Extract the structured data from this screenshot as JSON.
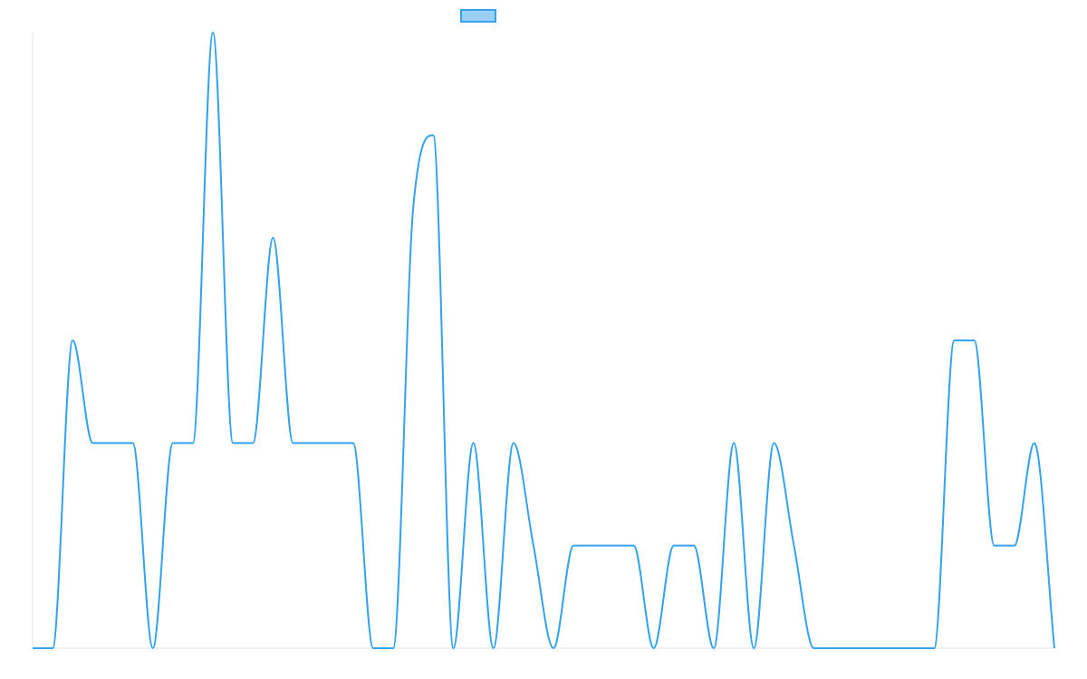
{
  "chart_data": {
    "type": "line",
    "x": [
      0,
      1,
      2,
      3,
      4,
      5,
      6,
      7,
      8,
      9,
      10,
      11,
      12,
      13,
      14,
      15,
      16,
      17,
      18,
      19,
      20,
      21,
      22,
      23,
      24,
      25,
      26,
      27,
      28,
      29,
      30,
      31,
      32,
      33,
      34,
      35,
      36,
      37,
      38,
      39,
      40,
      41,
      42,
      43,
      44,
      45,
      46,
      47,
      48,
      49,
      50,
      51
    ],
    "series": [
      {
        "values": [
          0,
          0,
          3,
          2,
          2,
          2,
          0,
          2,
          2,
          6,
          2,
          2,
          4,
          2,
          2,
          2,
          2,
          0,
          0,
          4.3,
          5,
          0,
          2,
          0,
          2,
          1,
          0,
          1,
          1,
          1,
          1,
          0,
          1,
          1,
          0,
          2,
          0,
          2,
          1,
          0,
          0,
          0,
          0,
          0,
          0,
          0,
          3,
          3,
          1,
          1,
          2,
          0
        ],
        "color": "#36a2eb"
      }
    ],
    "ylim": [
      0,
      6
    ],
    "grid": false,
    "legend": "top"
  }
}
